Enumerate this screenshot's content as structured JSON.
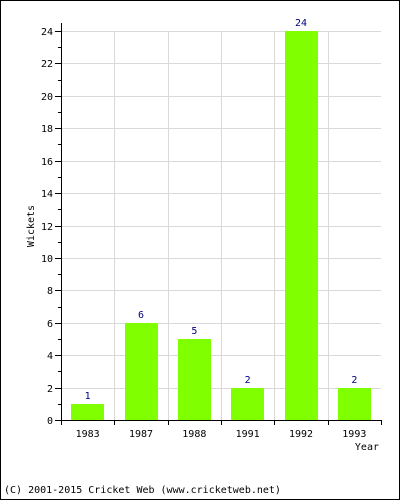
{
  "chart_data": {
    "type": "bar",
    "categories": [
      "1983",
      "1987",
      "1988",
      "1991",
      "1992",
      "1993"
    ],
    "values": [
      1,
      6,
      5,
      2,
      24,
      2
    ],
    "xlabel": "Year",
    "ylabel": "Wickets",
    "ylim": [
      0,
      24
    ],
    "yticks": [
      0,
      2,
      4,
      6,
      8,
      10,
      12,
      14,
      16,
      18,
      20,
      22,
      24
    ],
    "grid": true,
    "colors": {
      "bar": "#80ff00",
      "data_label": "#000080",
      "grid": "#d9d9d9",
      "axis": "#000000"
    }
  },
  "footer": {
    "copyright": "(C) 2001-2015 Cricket Web (www.cricketweb.net)"
  }
}
